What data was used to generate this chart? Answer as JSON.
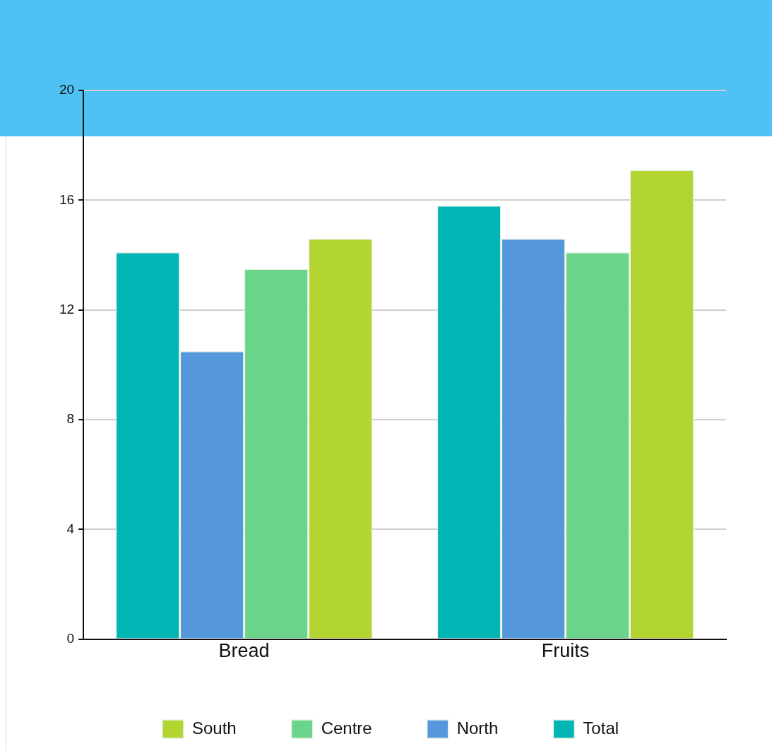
{
  "chart_data": {
    "type": "bar",
    "categories": [
      "Bread",
      "Fruits"
    ],
    "series": [
      {
        "name": "Total",
        "color": "#00b5b3",
        "values": [
          14.1,
          15.8
        ]
      },
      {
        "name": "North",
        "color": "#5597db",
        "values": [
          10.5,
          14.6
        ]
      },
      {
        "name": "Centre",
        "color": "#6ad58a",
        "values": [
          13.5,
          14.1
        ]
      },
      {
        "name": "South",
        "color": "#b2d532",
        "values": [
          14.6,
          17.1
        ]
      }
    ],
    "ylim": [
      0,
      20
    ],
    "yticks": [
      0,
      4,
      8,
      12,
      16,
      20
    ],
    "grid": "y",
    "legend": "bottom"
  }
}
